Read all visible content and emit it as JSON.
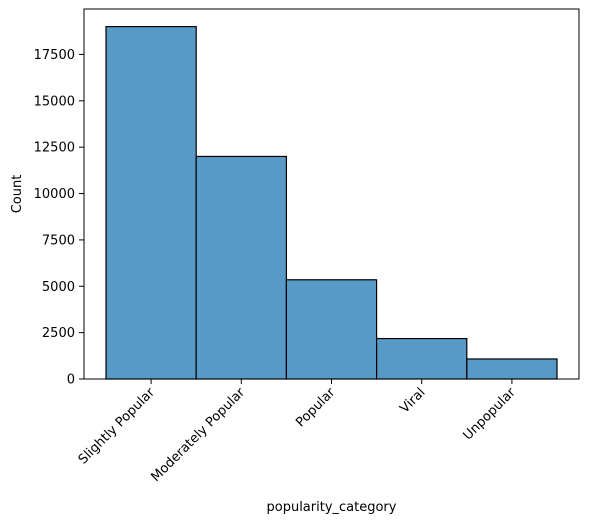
{
  "chart_data": {
    "type": "bar",
    "title": "",
    "xlabel": "popularity_category",
    "ylabel": "Count",
    "categories": [
      "Slightly Popular",
      "Moderately Popular",
      "Popular",
      "Viral",
      "Unpopular"
    ],
    "values": [
      19000,
      12000,
      5350,
      2180,
      1080
    ],
    "yticks": [
      0,
      2500,
      5000,
      7500,
      10000,
      12500,
      15000,
      17500
    ],
    "ylim": [
      0,
      19950
    ],
    "grid": false,
    "legend": "none",
    "colors": {
      "bar_fill": "#5799c7",
      "bar_edge": "#000000",
      "axis": "#000000"
    }
  }
}
